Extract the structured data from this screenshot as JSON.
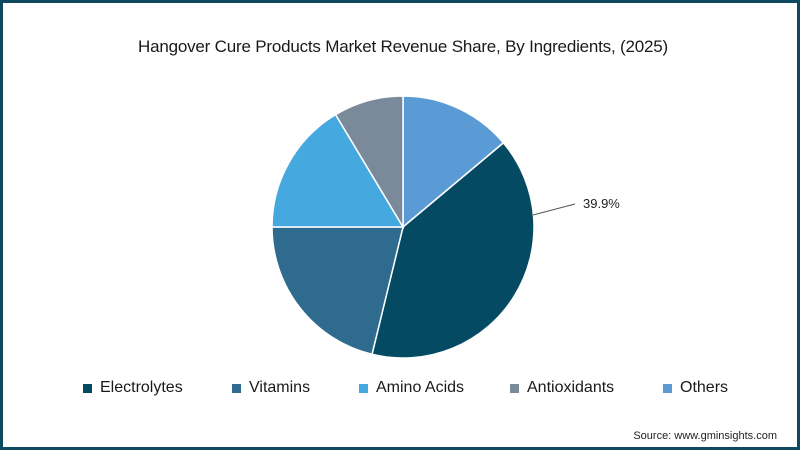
{
  "title": "Hangover Cure Products Market Revenue Share, By Ingredients, (2025)",
  "source": "Source: www.gminsights.com",
  "callout": {
    "label": "39.9%",
    "target": "Electrolytes"
  },
  "frame_color": "#0d4a5f",
  "legend": [
    {
      "label": "Electrolytes",
      "color": "#054a63"
    },
    {
      "label": "Vitamins",
      "color": "#2e6b8e"
    },
    {
      "label": "Amino Acids",
      "color": "#45a9df"
    },
    {
      "label": "Antioxidants",
      "color": "#7b8a9a"
    },
    {
      "label": "Others",
      "color": "#5b9bd5"
    }
  ],
  "chart_data": {
    "type": "pie",
    "title": "Hangover Cure Products Market Revenue Share, By Ingredients, (2025)",
    "categories": [
      "Electrolytes",
      "Vitamins",
      "Amino Acids",
      "Antioxidants",
      "Others"
    ],
    "values": [
      39.9,
      21.2,
      16.4,
      8.6,
      13.9
    ],
    "unit": "%",
    "colors": [
      "#054a63",
      "#2e6b8e",
      "#45a9df",
      "#7b8a9a",
      "#5b9bd5"
    ],
    "data_labels": {
      "Electrolytes": "39.9%"
    },
    "legend_position": "bottom",
    "start_angle_deg": 0,
    "slice_order_clockwise_from_top": [
      "Others",
      "Electrolytes",
      "Vitamins",
      "Amino Acids",
      "Antioxidants"
    ],
    "source": "www.gminsights.com"
  }
}
